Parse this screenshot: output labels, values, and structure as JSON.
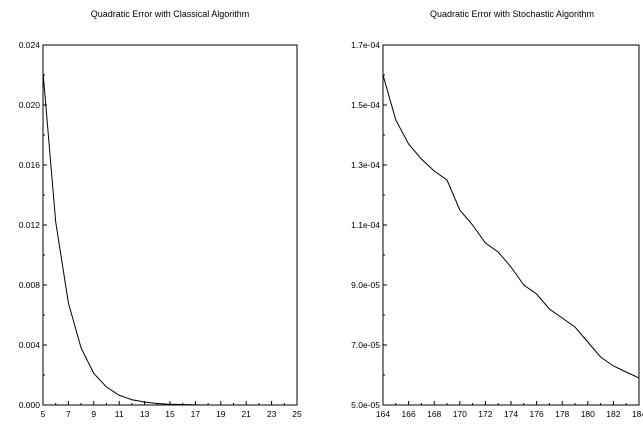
{
  "chart_data": [
    {
      "type": "line",
      "title": "Quadratic Error with Classical Algorithm",
      "xlabel": "",
      "ylabel": "",
      "xlim": [
        5,
        25
      ],
      "ylim": [
        0,
        0.024
      ],
      "x_ticks": [
        5,
        7,
        9,
        11,
        13,
        15,
        17,
        19,
        21,
        23,
        25
      ],
      "x_tick_labels": [
        "5",
        "7",
        "9",
        "11",
        "13",
        "15",
        "17",
        "19",
        "21",
        "23",
        "25"
      ],
      "y_ticks": [
        0,
        0.004,
        0.008,
        0.012,
        0.016,
        0.02,
        0.024
      ],
      "y_tick_labels": [
        "0.000",
        "0.004",
        "0.008",
        "0.012",
        "0.016",
        "0.020",
        "0.024"
      ],
      "grid": false,
      "series": [
        {
          "x": [
            5,
            6,
            7,
            8,
            9,
            10,
            11,
            12,
            13,
            14,
            15,
            16,
            17,
            18,
            19,
            20,
            21,
            22,
            23,
            24,
            25
          ],
          "y": [
            0.0222,
            0.0122,
            0.0068,
            0.0038,
            0.0021,
            0.0012,
            0.00065,
            0.00035,
            0.0002,
            0.0001,
            5e-05,
            3e-05,
            1e-05,
            0,
            0,
            0,
            0,
            0,
            0,
            0,
            0
          ]
        }
      ]
    },
    {
      "type": "line",
      "title": "Quadratic Error with Stochastic Algorithm",
      "xlabel": "",
      "ylabel": "",
      "xlim": [
        164,
        184
      ],
      "ylim": [
        5e-05,
        0.00017
      ],
      "x_ticks": [
        164,
        166,
        168,
        170,
        172,
        174,
        176,
        178,
        180,
        182,
        184
      ],
      "x_tick_labels": [
        "164",
        "166",
        "168",
        "170",
        "172",
        "174",
        "176",
        "178",
        "180",
        "182",
        "184"
      ],
      "y_ticks": [
        5e-05,
        7e-05,
        9e-05,
        0.00011,
        0.00013,
        0.00015,
        0.00017
      ],
      "y_tick_labels": [
        "5.0e-05",
        "7.0e-05",
        "9.0e-05",
        "1.1e-04",
        "1.3e-04",
        "1.5e-04",
        "1.7e-04"
      ],
      "grid": false,
      "series": [
        {
          "x": [
            164,
            165,
            166,
            167,
            168,
            169,
            170,
            171,
            172,
            173,
            174,
            175,
            176,
            177,
            178,
            179,
            180,
            181,
            182,
            183,
            184
          ],
          "y": [
            0.00016,
            0.000145,
            0.000137,
            0.000132,
            0.000128,
            0.000125,
            0.000115,
            0.00011,
            0.000104,
            0.000101,
            9.6e-05,
            9e-05,
            8.7e-05,
            8.2e-05,
            7.9e-05,
            7.6e-05,
            7.1e-05,
            6.6e-05,
            6.3e-05,
            6.1e-05,
            5.9e-05
          ]
        }
      ]
    }
  ]
}
